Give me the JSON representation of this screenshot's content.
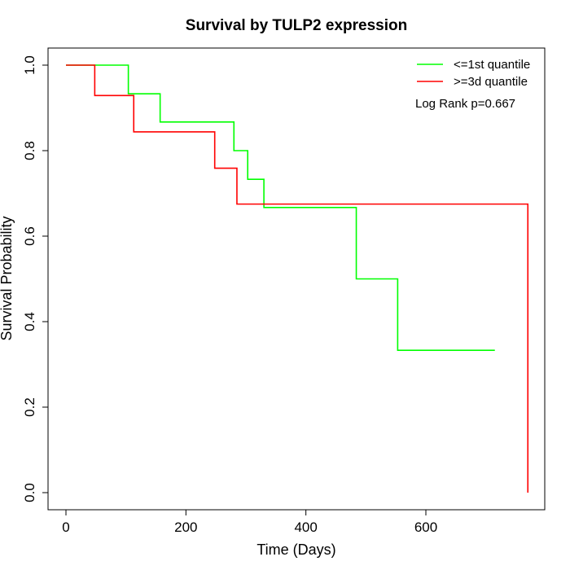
{
  "chart_data": {
    "type": "line",
    "subtype": "kaplan-meier step",
    "title": "Survival by TULP2 expression",
    "xlabel": "Time (Days)",
    "ylabel": "Survival Probability",
    "xlim": [
      0,
      760
    ],
    "ylim": [
      0,
      1
    ],
    "xticks": [
      0,
      200,
      400,
      600
    ],
    "yticks": [
      0.0,
      0.2,
      0.4,
      0.6,
      0.8,
      1.0
    ],
    "xtick_labels": [
      "0",
      "200",
      "400",
      "600"
    ],
    "ytick_labels": [
      "0.0",
      "0.2",
      "0.4",
      "0.6",
      "0.8",
      "1.0"
    ],
    "grid": false,
    "legend_position": "top-right",
    "annotation": "Log Rank p=0.667",
    "series": [
      {
        "name": "<=1st quantile",
        "color": "#00ff00",
        "x": [
          0,
          104,
          157,
          280,
          303,
          330,
          484,
          553,
          715
        ],
        "y": [
          1.0,
          0.933,
          0.867,
          0.8,
          0.733,
          0.667,
          0.5,
          0.333,
          0.333
        ]
      },
      {
        "name": ">=3d quantile",
        "color": "#ff0000",
        "x": [
          0,
          48,
          113,
          248,
          285,
          770,
          770
        ],
        "y": [
          1.0,
          0.929,
          0.844,
          0.759,
          0.675,
          0.675,
          0.0
        ]
      }
    ]
  }
}
